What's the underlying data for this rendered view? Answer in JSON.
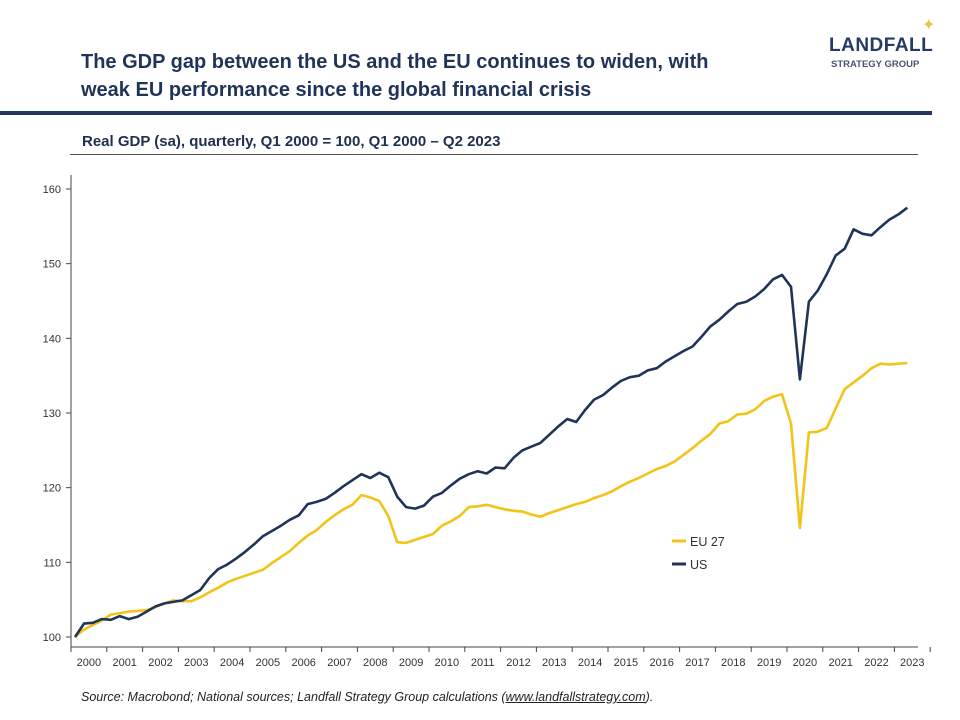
{
  "header": {
    "title_line1": "The GDP gap between the US and the EU continues to widen, with",
    "title_line2": "weak EU performance since the global financial crisis",
    "logo_main": "LANDFALL",
    "logo_sub": "STRATEGY GROUP"
  },
  "footer": {
    "source_prefix": "Source: Macrobond; National sources; Landfall Strategy Group calculations (",
    "source_link": "www.landfallstrategy.com",
    "source_suffix": ")."
  },
  "chart_data": {
    "type": "line",
    "title": "Real GDP (sa), quarterly, Q1 2000 = 100, Q1 2000 – Q2 2023",
    "xlabel": "",
    "ylabel": "",
    "frequency": "quarterly",
    "x_start": "2000 Q1",
    "x_end": "2023 Q2",
    "x_tick_labels": [
      "2000",
      "2001",
      "2002",
      "2003",
      "2004",
      "2005",
      "2006",
      "2007",
      "2008",
      "2009",
      "2010",
      "2011",
      "2012",
      "2013",
      "2014",
      "2015",
      "2016",
      "2017",
      "2018",
      "2019",
      "2020",
      "2021",
      "2022",
      "2023"
    ],
    "ylim": [
      100,
      160
    ],
    "y_ticks": [
      100,
      110,
      120,
      130,
      140,
      150,
      160
    ],
    "grid": false,
    "legend_position": "bottom-center",
    "series": [
      {
        "name": "EU 27",
        "color": "#f2c318",
        "values": [
          100.0,
          101.0,
          101.6,
          102.2,
          103.0,
          103.2,
          103.4,
          103.5,
          103.6,
          104.0,
          104.5,
          104.9,
          104.8,
          104.8,
          105.3,
          106.0,
          106.6,
          107.3,
          107.8,
          108.2,
          108.6,
          109.0,
          109.9,
          110.7,
          111.5,
          112.6,
          113.6,
          114.3,
          115.4,
          116.3,
          117.1,
          117.7,
          119.0,
          118.7,
          118.2,
          116.2,
          112.7,
          112.6,
          113.0,
          113.4,
          113.8,
          114.9,
          115.5,
          116.2,
          117.4,
          117.5,
          117.7,
          117.4,
          117.1,
          116.9,
          116.8,
          116.4,
          116.1,
          116.6,
          117.0,
          117.4,
          117.8,
          118.1,
          118.6,
          119.0,
          119.5,
          120.2,
          120.8,
          121.3,
          121.9,
          122.5,
          122.9,
          123.5,
          124.4,
          125.3,
          126.3,
          127.2,
          128.6,
          128.9,
          129.8,
          129.9,
          130.5,
          131.6,
          132.2,
          132.5,
          128.6,
          114.6,
          127.4,
          127.5,
          128.0,
          130.6,
          133.2,
          134.1,
          135.0,
          136.0,
          136.6,
          136.5,
          136.6,
          136.7
        ]
      },
      {
        "name": "US",
        "color": "#1f3458",
        "values": [
          100.0,
          101.8,
          101.9,
          102.4,
          102.3,
          102.8,
          102.4,
          102.7,
          103.4,
          104.1,
          104.5,
          104.7,
          104.9,
          105.6,
          106.3,
          107.9,
          109.1,
          109.7,
          110.5,
          111.4,
          112.4,
          113.5,
          114.2,
          114.9,
          115.7,
          116.3,
          117.8,
          118.1,
          118.5,
          119.3,
          120.2,
          121.0,
          121.8,
          121.3,
          122.0,
          121.4,
          118.8,
          117.4,
          117.2,
          117.6,
          118.8,
          119.3,
          120.3,
          121.2,
          121.8,
          122.2,
          121.9,
          122.7,
          122.6,
          124.0,
          125.0,
          125.5,
          126.0,
          127.1,
          128.2,
          129.2,
          128.8,
          130.4,
          131.8,
          132.4,
          133.4,
          134.3,
          134.8,
          135.0,
          135.7,
          136.0,
          136.9,
          137.6,
          138.3,
          138.9,
          140.2,
          141.6,
          142.5,
          143.6,
          144.6,
          144.9,
          145.6,
          146.6,
          147.9,
          148.5,
          146.9,
          134.5,
          144.9,
          146.4,
          148.6,
          151.1,
          152.0,
          154.6,
          154.0,
          153.8,
          154.9,
          155.9,
          156.6,
          157.5
        ]
      }
    ]
  }
}
